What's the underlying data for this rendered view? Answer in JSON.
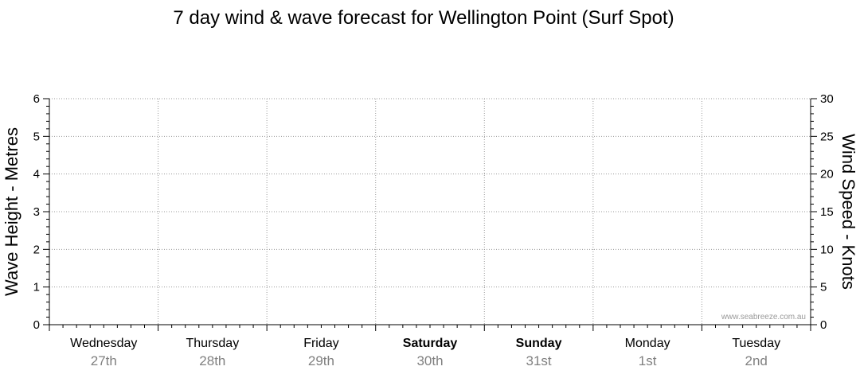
{
  "chart_data": {
    "type": "line",
    "title": "7 day wind & wave forecast for Wellington Point (Surf Spot)",
    "ylabel_left": "Wave Height - Metres",
    "ylabel_right": "Wind Speed - Knots",
    "ylim_left": [
      0,
      6
    ],
    "ylim_right": [
      0,
      30
    ],
    "yticks_left": [
      "0",
      "1",
      "2",
      "3",
      "4",
      "5",
      "6"
    ],
    "yticks_right": [
      "0",
      "5",
      "10",
      "15",
      "20",
      "25",
      "30"
    ],
    "grid": true,
    "days": [
      {
        "name": "Wednesday",
        "date": "27th",
        "bold": false
      },
      {
        "name": "Thursday",
        "date": "28th",
        "bold": false
      },
      {
        "name": "Friday",
        "date": "29th",
        "bold": false
      },
      {
        "name": "Saturday",
        "date": "30th",
        "bold": true
      },
      {
        "name": "Sunday",
        "date": "31st",
        "bold": true
      },
      {
        "name": "Monday",
        "date": "1st",
        "bold": false
      },
      {
        "name": "Tuesday",
        "date": "2nd",
        "bold": false
      }
    ],
    "series": [],
    "watermark": "www.seabreeze.com.au"
  },
  "colors": {
    "axis": "#000000",
    "grid": "#9a9a9a",
    "date_text": "#808080"
  }
}
